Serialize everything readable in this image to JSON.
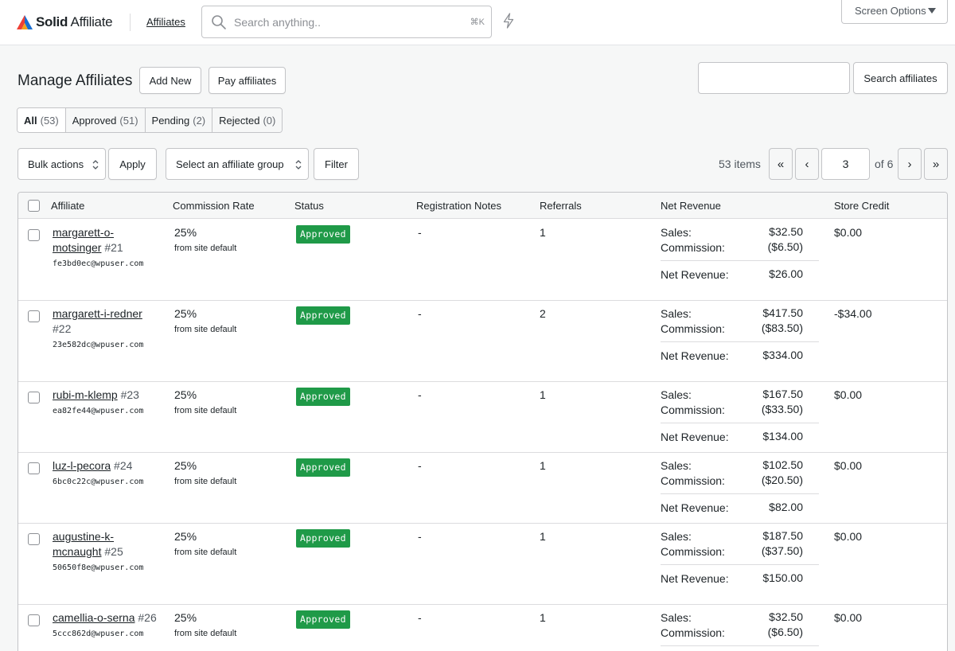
{
  "brand": {
    "name_bold": "Solid",
    "name_rest": " Affiliate",
    "colors": {
      "red": "#ef4136",
      "orange": "#f7a21b",
      "blue": "#1a6fd1"
    }
  },
  "topbar": {
    "nav_link": "Affiliates",
    "search_placeholder": "Search anything..",
    "search_shortcut": "⌘K",
    "screen_options": "Screen Options"
  },
  "header": {
    "title": "Manage Affiliates",
    "add_new": "Add New",
    "pay_affiliates": "Pay affiliates",
    "search_affiliates": "Search affiliates",
    "search_value": ""
  },
  "filters": [
    {
      "label": "All",
      "count": "(53)"
    },
    {
      "label": "Approved",
      "count": "(51)"
    },
    {
      "label": "Pending",
      "count": "(2)"
    },
    {
      "label": "Rejected",
      "count": "(0)"
    }
  ],
  "toolbar": {
    "bulk_actions": "Bulk actions",
    "apply": "Apply",
    "group_select": "Select an affiliate group",
    "filter": "Filter",
    "items_count": "53 items",
    "first": "«",
    "prev": "‹",
    "current_page": "3",
    "of_pages": "of 6",
    "next": "›",
    "last": "»"
  },
  "columns": [
    "Affiliate",
    "Commission Rate",
    "Status",
    "Registration Notes",
    "Referrals",
    "Net Revenue",
    "Store Credit"
  ],
  "revenue_labels": {
    "sales": "Sales:",
    "commission": "Commission:",
    "net": "Net Revenue:"
  },
  "rows": [
    {
      "name_l1": "margarett-o-",
      "name_l2": "motsinger",
      "id": "#21",
      "email": "fe3bd0ec@wpuser.com",
      "rate": "25%",
      "rate_source": "from site default",
      "status": "Approved",
      "notes": "-",
      "referrals": "1",
      "sales": "$32.50",
      "commission": "($6.50)",
      "net": "$26.00",
      "store_credit": "$0.00"
    },
    {
      "name_l1": "margarett-i-redner",
      "name_l2": "",
      "id": "#22",
      "email": "23e582dc@wpuser.com",
      "rate": "25%",
      "rate_source": "from site default",
      "status": "Approved",
      "notes": "-",
      "referrals": "2",
      "sales": "$417.50",
      "commission": "($83.50)",
      "net": "$334.00",
      "store_credit": "-$34.00"
    },
    {
      "name_l1": "rubi-m-klemp",
      "name_l2": "",
      "id": "#23",
      "email": "ea82fe44@wpuser.com",
      "rate": "25%",
      "rate_source": "from site default",
      "status": "Approved",
      "notes": "-",
      "referrals": "1",
      "sales": "$167.50",
      "commission": "($33.50)",
      "net": "$134.00",
      "store_credit": "$0.00"
    },
    {
      "name_l1": "luz-l-pecora",
      "name_l2": "",
      "id": "#24",
      "email": "6bc0c22c@wpuser.com",
      "rate": "25%",
      "rate_source": "from site default",
      "status": "Approved",
      "notes": "-",
      "referrals": "1",
      "sales": "$102.50",
      "commission": "($20.50)",
      "net": "$82.00",
      "store_credit": "$0.00"
    },
    {
      "name_l1": "augustine-k-",
      "name_l2": "mcnaught",
      "id": "#25",
      "email": "50650f8e@wpuser.com",
      "rate": "25%",
      "rate_source": "from site default",
      "status": "Approved",
      "notes": "-",
      "referrals": "1",
      "sales": "$187.50",
      "commission": "($37.50)",
      "net": "$150.00",
      "store_credit": "$0.00"
    },
    {
      "name_l1": "camellia-o-serna",
      "name_l2": "",
      "id": "#26",
      "email": "5ccc862d@wpuser.com",
      "rate": "25%",
      "rate_source": "from site default",
      "status": "Approved",
      "notes": "-",
      "referrals": "1",
      "sales": "$32.50",
      "commission": "($6.50)",
      "net": "",
      "store_credit": "$0.00"
    }
  ],
  "status_color": "#1f9a48"
}
